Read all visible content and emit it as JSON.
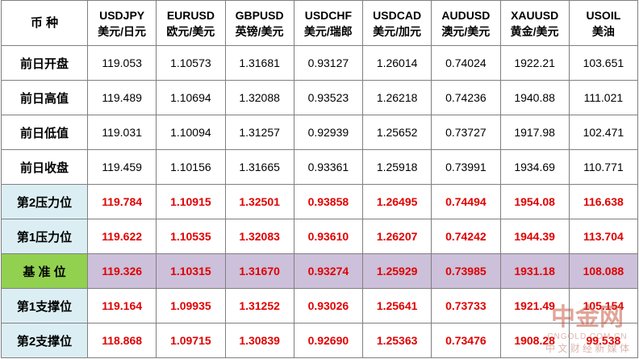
{
  "table": {
    "header": {
      "corner": "币 种",
      "columns": [
        [
          "USDJPY",
          "美元/日元"
        ],
        [
          "EURUSD",
          "欧元/美元"
        ],
        [
          "GBPUSD",
          "英镑/美元"
        ],
        [
          "USDCHF",
          "美元/瑞郎"
        ],
        [
          "USDCAD",
          "美元/加元"
        ],
        [
          "AUDUSD",
          "澳元/美元"
        ],
        [
          "XAUUSD",
          "黄金/美元"
        ],
        [
          "USOIL",
          "美油"
        ]
      ]
    },
    "rows": [
      [
        "前日开盘",
        "119.053",
        "1.10573",
        "1.31681",
        "0.93127",
        "1.26014",
        "0.74024",
        "1922.21",
        "103.651"
      ],
      [
        "前日高值",
        "119.489",
        "1.10694",
        "1.32088",
        "0.93523",
        "1.26218",
        "0.74236",
        "1940.88",
        "111.021"
      ],
      [
        "前日低值",
        "119.031",
        "1.10094",
        "1.31257",
        "0.92939",
        "1.25652",
        "0.73727",
        "1917.98",
        "102.471"
      ],
      [
        "前日收盘",
        "119.459",
        "1.10156",
        "1.31665",
        "0.93361",
        "1.25918",
        "0.73991",
        "1934.69",
        "110.771"
      ],
      [
        "第2压力位",
        "119.784",
        "1.10915",
        "1.32501",
        "0.93858",
        "1.26495",
        "0.74494",
        "1954.08",
        "116.638"
      ],
      [
        "第1压力位",
        "119.622",
        "1.10535",
        "1.32083",
        "0.93610",
        "1.26207",
        "0.74242",
        "1944.39",
        "113.704"
      ],
      [
        "基 准 位",
        "119.326",
        "1.10315",
        "1.31670",
        "0.93274",
        "1.25929",
        "0.73985",
        "1931.18",
        "108.088"
      ],
      [
        "第1支撑位",
        "119.164",
        "1.09935",
        "1.31252",
        "0.93026",
        "1.25641",
        "0.73733",
        "1921.49",
        "105.154"
      ],
      [
        "第2支撑位",
        "118.868",
        "1.09715",
        "1.30839",
        "0.92690",
        "1.25363",
        "0.73476",
        "1908.28",
        "99.538"
      ]
    ]
  },
  "watermark": {
    "logo": "中金网",
    "domain": "CNGOLD.COM.CN",
    "slogan": "中 文 财 经 新 媒 体"
  }
}
